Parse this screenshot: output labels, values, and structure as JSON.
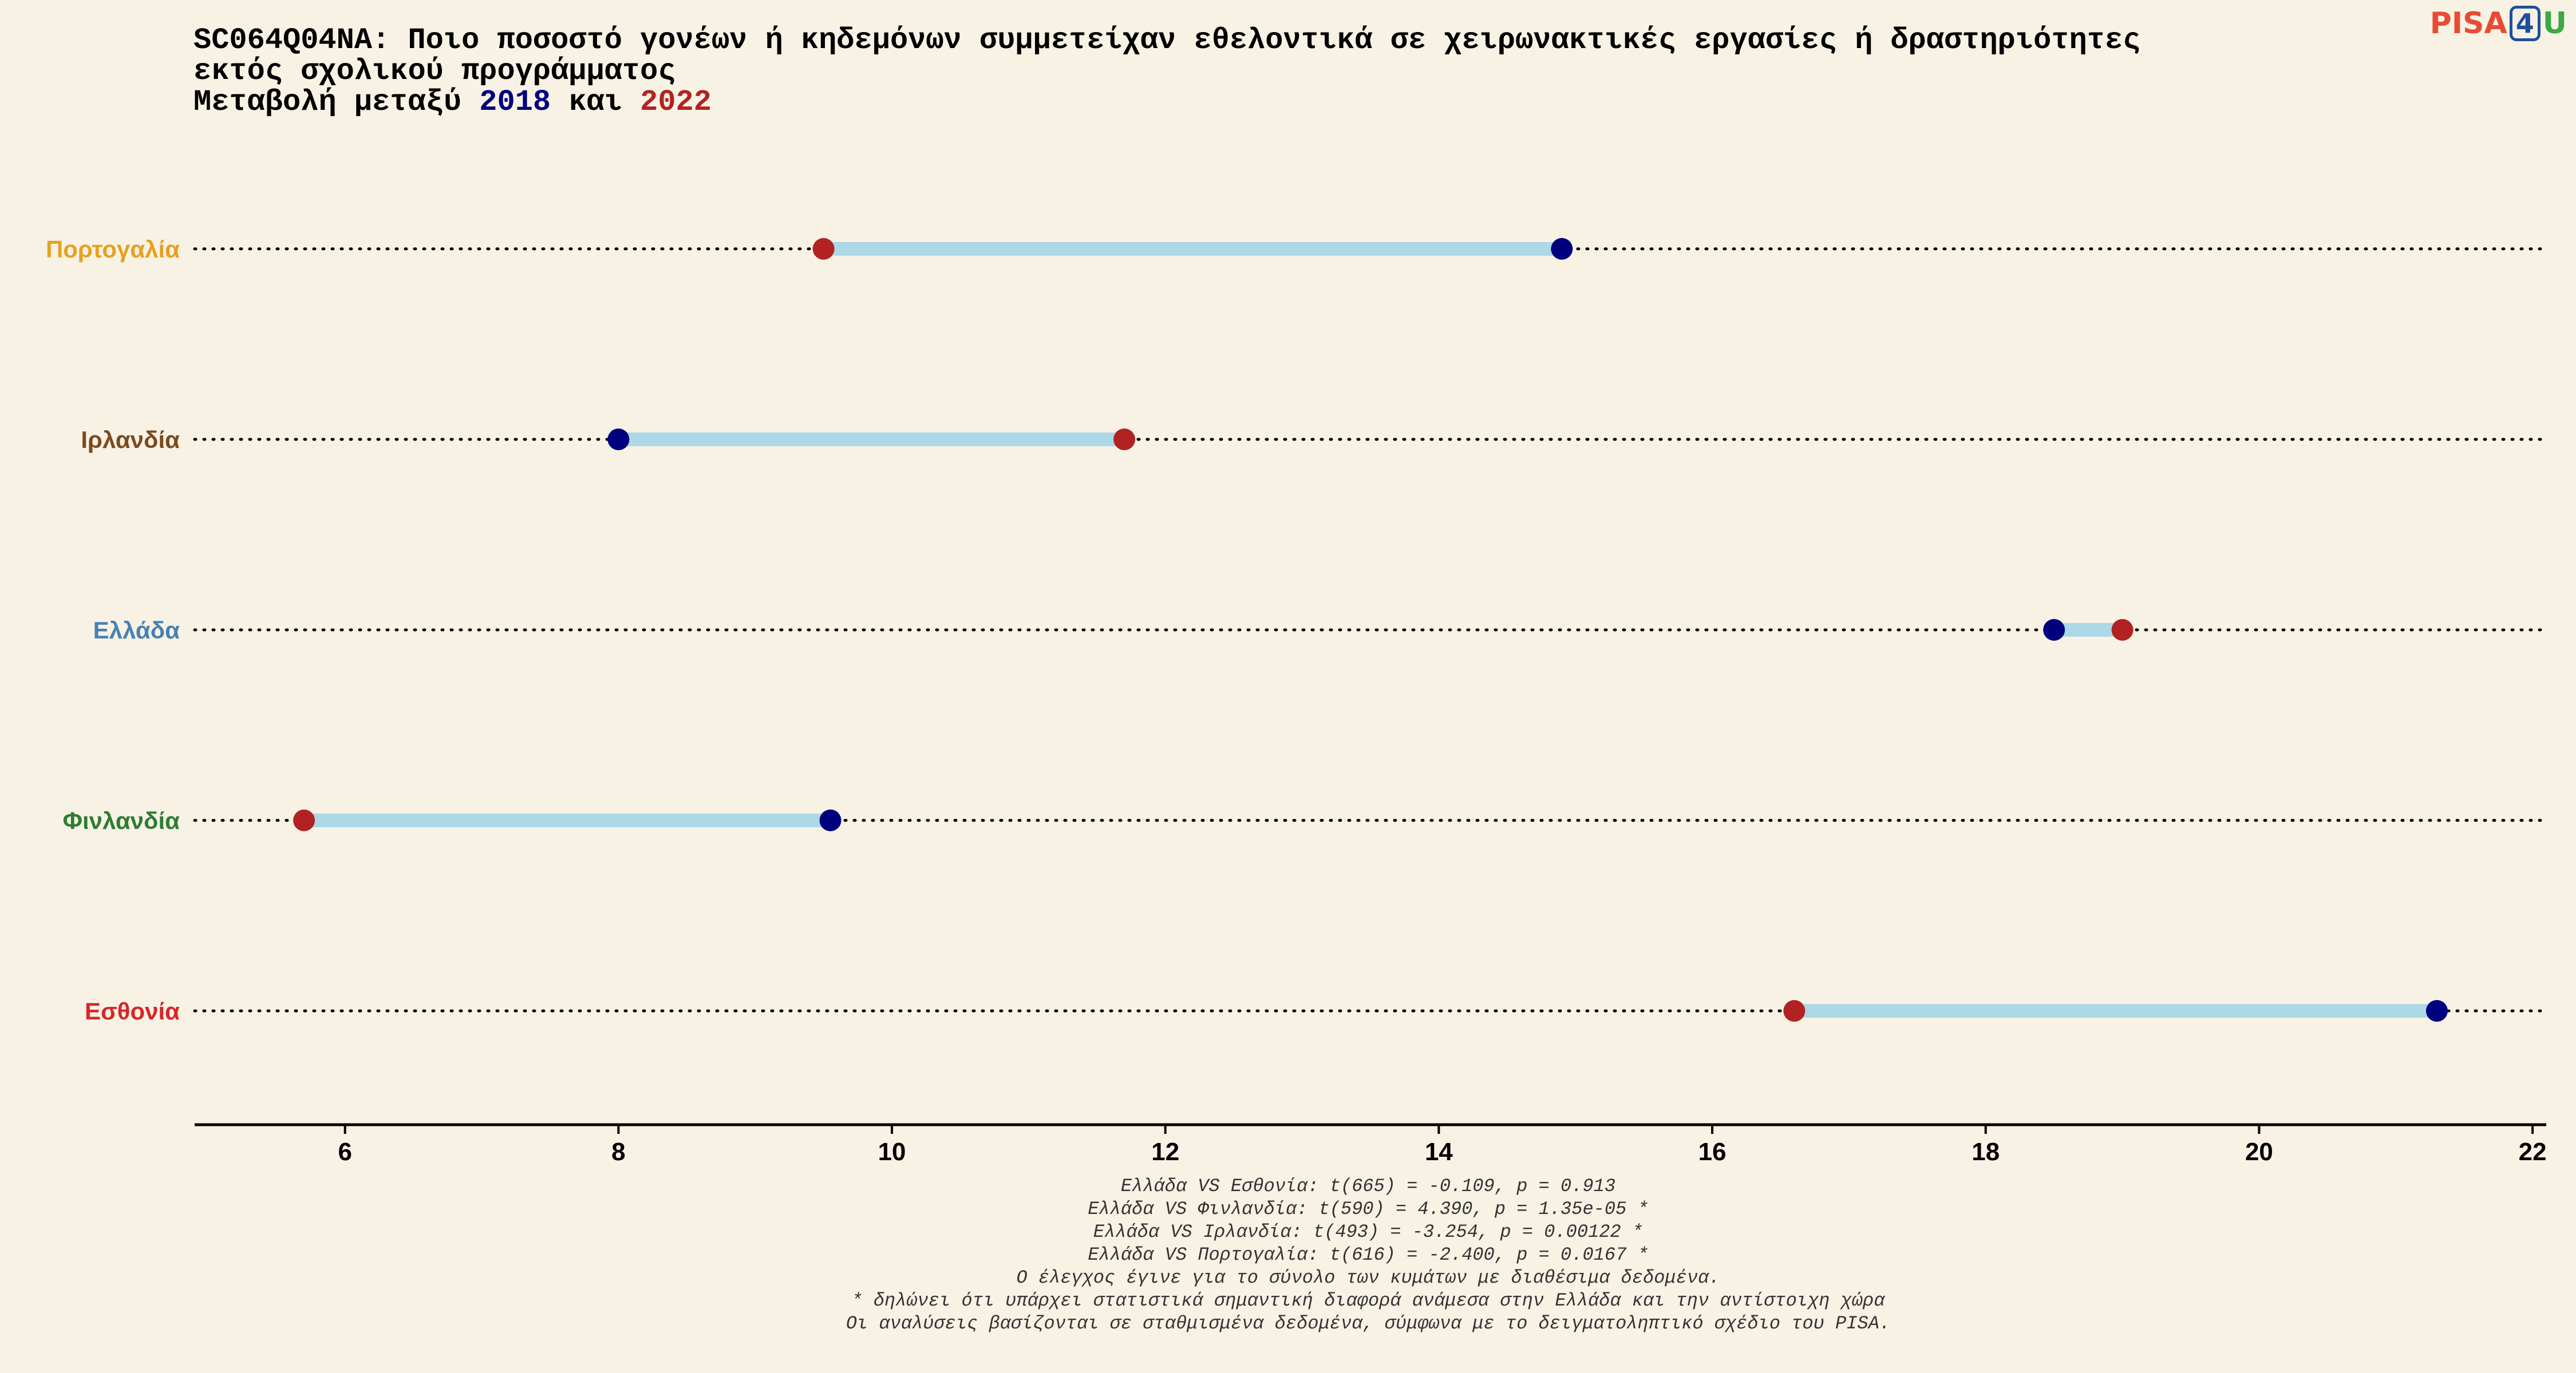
{
  "title": {
    "line1": "SC064Q04NA: Ποιο ποσοστό γονέων ή κηδεμόνων συμμετείχαν εθελοντικά σε χειρωνακτικές εργασίες ή δραστηριότητες",
    "line2": "εκτός σχολικού προγράμματος",
    "line3_prefix": "Μεταβολή μεταξύ ",
    "year_a": "2018",
    "line3_mid": " και ",
    "year_b": "2022"
  },
  "logo": {
    "part1": "PISA",
    "part2": "4",
    "part3": "U"
  },
  "chart_data": {
    "type": "dumbbell",
    "xlim": [
      4.9,
      22.1
    ],
    "x_ticks": [
      6,
      8,
      10,
      12,
      14,
      16,
      18,
      20,
      22
    ],
    "grid": false,
    "colors": {
      "year_2018": "#00007f",
      "year_2022": "#b22222",
      "connector": "#add8e6"
    },
    "categories": [
      {
        "name": "Πορτογαλία",
        "color": "#e6a11f",
        "v2018": 14.9,
        "v2022": 9.5
      },
      {
        "name": "Ιρλανδία",
        "color": "#7b4a1e",
        "v2018": 8.0,
        "v2022": 11.7
      },
      {
        "name": "Ελλάδα",
        "color": "#4682b4",
        "v2018": 18.5,
        "v2022": 19.0
      },
      {
        "name": "Φινλανδία",
        "color": "#2e7d32",
        "v2018": 9.55,
        "v2022": 5.7
      },
      {
        "name": "Εσθονία",
        "color": "#d62728",
        "v2018": 21.3,
        "v2022": 16.6
      }
    ]
  },
  "notes": [
    "Ελλάδα VS Εσθονία: t(665) = -0.109, p = 0.913",
    "Ελλάδα VS Φινλανδία: t(590) = 4.390, p = 1.35e-05 *",
    "Ελλάδα VS Ιρλανδία: t(493) = -3.254, p = 0.00122 *",
    "Ελλάδα VS Πορτογαλία: t(616) = -2.400, p = 0.0167 *",
    "Ο έλεγχος έγινε για το σύνολο των κυμάτων με διαθέσιμα δεδομένα.",
    "* δηλώνει ότι υπάρχει στατιστικά σημαντική διαφορά ανάμεσα στην Ελλάδα και την αντίστοιχη χώρα",
    "Οι αναλύσεις βασίζονται σε σταθμισμένα δεδομένα, σύμφωνα με το δειγματοληπτικό σχέδιο του PISA."
  ]
}
